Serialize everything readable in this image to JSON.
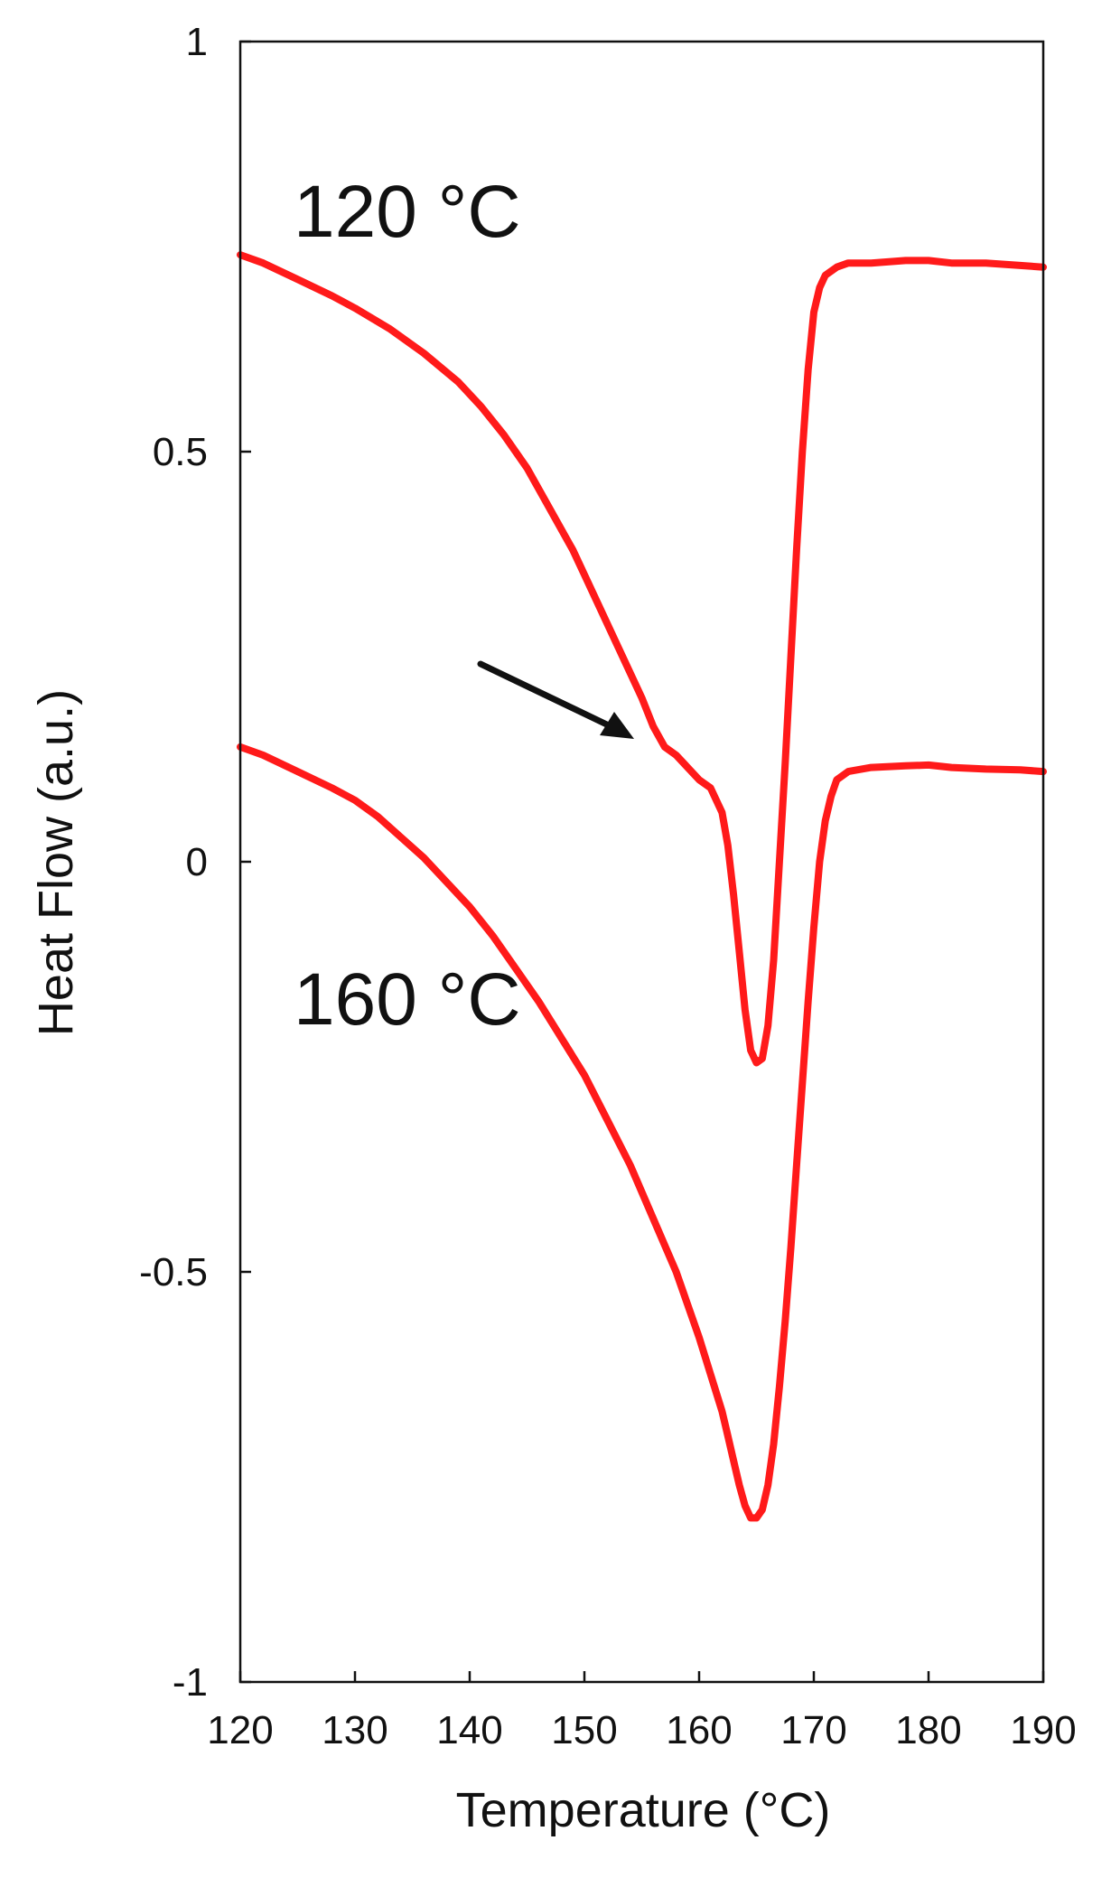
{
  "chart_data": {
    "type": "line",
    "title": "",
    "xlabel": "Temperature (°C)",
    "ylabel": "Heat Flow (a.u.)",
    "xlim": [
      120,
      190
    ],
    "ylim": [
      -1,
      1
    ],
    "xticks": [
      120,
      130,
      140,
      150,
      160,
      170,
      180,
      190
    ],
    "yticks": [
      1,
      0.5,
      0,
      -0.5,
      -1
    ],
    "ytick_labels": [
      "1",
      "0.5",
      "0",
      "-0.5",
      "-1"
    ],
    "grid": false,
    "legend": "none",
    "line_color": "#ff1a1a",
    "series": [
      {
        "x": [
          120,
          122,
          125,
          128,
          130,
          133,
          136,
          139,
          141,
          143,
          145,
          147,
          149,
          150,
          151,
          152,
          153,
          154,
          155,
          156,
          157,
          158,
          159,
          160,
          161,
          162,
          162.5,
          163,
          163.5,
          164,
          164.5,
          165,
          165.5,
          166,
          166.5,
          167,
          167.5,
          168,
          168.5,
          169,
          169.5,
          170,
          170.5,
          171,
          172,
          173,
          175,
          178,
          180,
          182,
          185,
          188,
          190
        ],
        "y": [
          0.74,
          0.73,
          0.71,
          0.69,
          0.675,
          0.65,
          0.62,
          0.585,
          0.555,
          0.52,
          0.48,
          0.43,
          0.38,
          0.35,
          0.32,
          0.29,
          0.26,
          0.23,
          0.2,
          0.165,
          0.14,
          0.13,
          0.115,
          0.1,
          0.09,
          0.06,
          0.02,
          -0.04,
          -0.11,
          -0.18,
          -0.23,
          -0.245,
          -0.24,
          -0.2,
          -0.12,
          0.0,
          0.12,
          0.25,
          0.38,
          0.5,
          0.6,
          0.67,
          0.7,
          0.715,
          0.725,
          0.73,
          0.73,
          0.733,
          0.733,
          0.73,
          0.73,
          0.727,
          0.725
        ]
      },
      {
        "x": [
          120,
          122,
          125,
          128,
          130,
          132,
          134,
          136,
          138,
          140,
          142,
          144,
          146,
          148,
          150,
          152,
          154,
          156,
          158,
          159,
          160,
          161,
          162,
          162.5,
          163,
          163.5,
          164,
          164.5,
          165,
          165.5,
          166,
          166.5,
          167,
          167.5,
          168,
          168.5,
          169,
          169.5,
          170,
          170.5,
          171,
          171.5,
          172,
          173,
          175,
          178,
          180,
          182,
          185,
          188,
          190
        ],
        "y": [
          0.14,
          0.13,
          0.11,
          0.09,
          0.075,
          0.055,
          0.03,
          0.005,
          -0.025,
          -0.055,
          -0.09,
          -0.13,
          -0.17,
          -0.215,
          -0.26,
          -0.315,
          -0.37,
          -0.435,
          -0.5,
          -0.54,
          -0.58,
          -0.625,
          -0.67,
          -0.7,
          -0.73,
          -0.76,
          -0.785,
          -0.8,
          -0.8,
          -0.79,
          -0.76,
          -0.71,
          -0.64,
          -0.56,
          -0.47,
          -0.37,
          -0.27,
          -0.17,
          -0.08,
          0.0,
          0.05,
          0.08,
          0.1,
          0.11,
          0.115,
          0.117,
          0.118,
          0.115,
          0.113,
          0.112,
          0.11
        ]
      }
    ],
    "annotations": [
      "120 °C",
      "160 °C"
    ]
  }
}
